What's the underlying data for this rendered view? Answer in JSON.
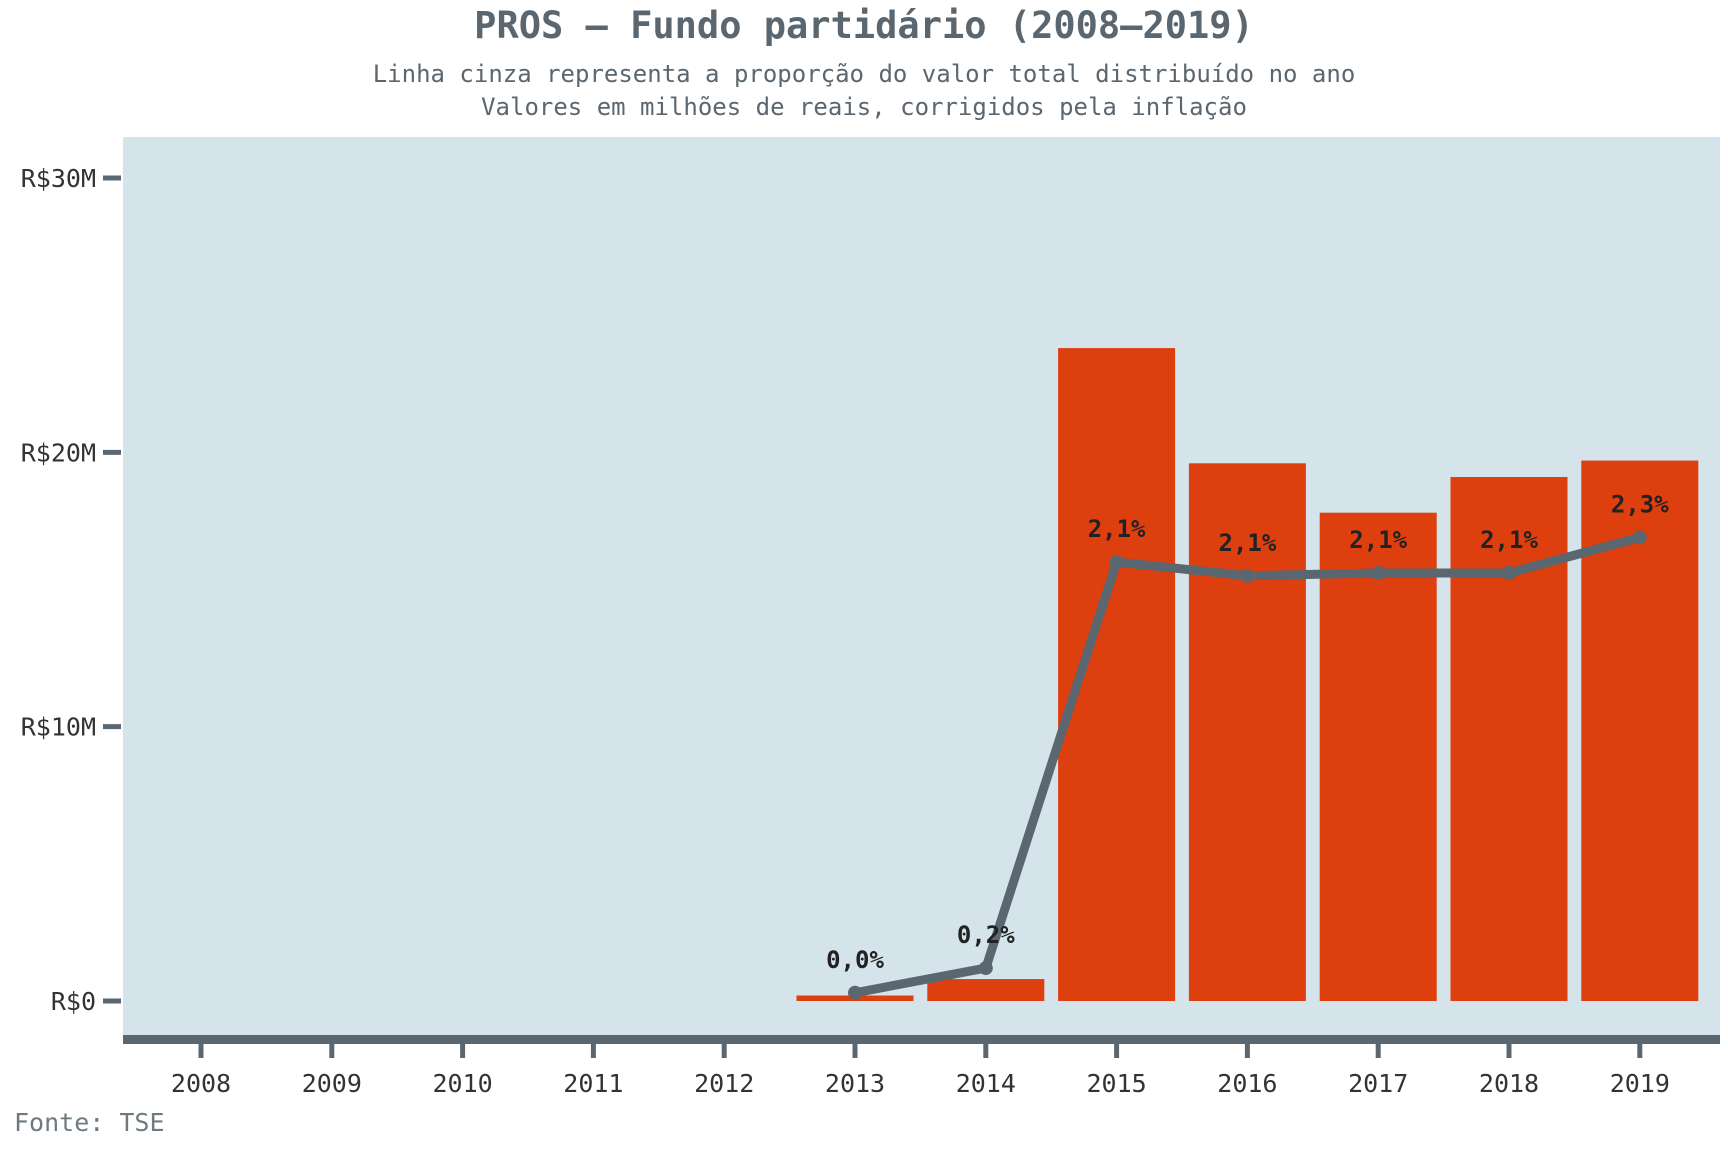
{
  "title": "PROS – Fundo partidário (2008–2019)",
  "subtitle_line1": "Linha cinza representa a proporção do valor total distribuído no ano",
  "subtitle_line2": "Valores em milhões de reais, corrigidos pela inflação",
  "source": "Fonte: TSE",
  "colors": {
    "panel_background": "#d5e4eb",
    "bar": "#dd3f0e",
    "line": "#5b6770",
    "axis": "#5b6770"
  },
  "chart_data": {
    "type": "bar",
    "categories": [
      "2008",
      "2009",
      "2010",
      "2011",
      "2012",
      "2013",
      "2014",
      "2015",
      "2016",
      "2017",
      "2018",
      "2019"
    ],
    "values": [
      0,
      0,
      0,
      0,
      0,
      0.2,
      0.8,
      23.8,
      19.6,
      17.8,
      19.1,
      19.7
    ],
    "value_unit": "R$ milhões",
    "ylim": [
      0,
      31.5
    ],
    "yticks": [
      0,
      10,
      20,
      30
    ],
    "ytick_labels": [
      "R$0",
      "R$10M",
      "R$20M",
      "R$30M"
    ],
    "line_series": {
      "description": "proporção do valor total distribuído no ano",
      "categories": [
        "2013",
        "2014",
        "2015",
        "2016",
        "2017",
        "2018",
        "2019"
      ],
      "values_pct": [
        0.0,
        0.2,
        2.1,
        2.1,
        2.1,
        2.1,
        2.3
      ],
      "labels": [
        "0,0%",
        "0,2%",
        "2,1%",
        "2,1%",
        "2,1%",
        "2,1%",
        "2,3%"
      ],
      "plotted_as_millions": [
        0.3,
        1.2,
        16.0,
        15.5,
        15.6,
        15.6,
        16.9
      ]
    },
    "xlabel": "",
    "ylabel": "",
    "grid": false,
    "legend": "none"
  }
}
